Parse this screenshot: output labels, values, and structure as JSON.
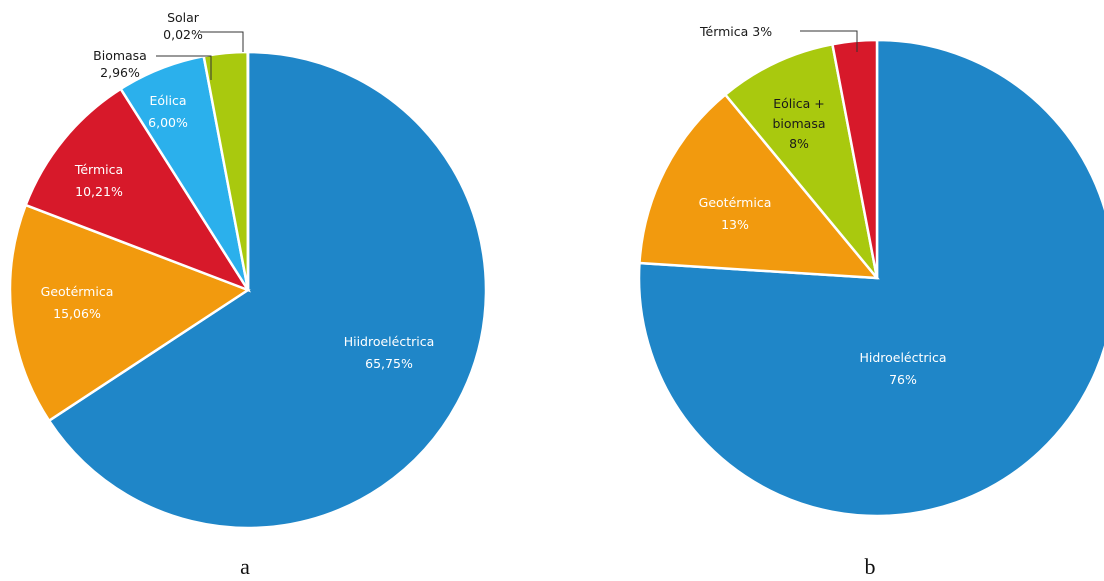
{
  "chart_data": [
    {
      "type": "pie",
      "panel_label": "a",
      "decimal_separator": ",",
      "unit": "%",
      "slices": [
        {
          "name": "Hiidroeléctrica",
          "value": 65.75,
          "value_text": "65,75%",
          "color": "#1F86C8",
          "text_color": "#ffffff"
        },
        {
          "name": "Geotérmica",
          "value": 15.06,
          "value_text": "15,06%",
          "color": "#F29A0E",
          "text_color": "#ffffff"
        },
        {
          "name": "Térmica",
          "value": 10.21,
          "value_text": "10,21%",
          "color": "#D7192A",
          "text_color": "#ffffff"
        },
        {
          "name": "Eólica",
          "value": 6.0,
          "value_text": "6,00%",
          "color": "#2BB0EC",
          "text_color": "#ffffff"
        },
        {
          "name": "Biomasa",
          "value": 2.96,
          "value_text": "2,96%",
          "color": "#A9C90E",
          "text_color": "#1a1a1a"
        },
        {
          "name": "Solar",
          "value": 0.02,
          "value_text": "0,02%",
          "color": "#F2E22A",
          "text_color": "#1a1a1a"
        }
      ]
    },
    {
      "type": "pie",
      "panel_label": "b",
      "unit": "%",
      "slices": [
        {
          "name": "Hidroeléctrica",
          "value": 76,
          "value_text": "76%",
          "color": "#1F86C8",
          "text_color": "#ffffff"
        },
        {
          "name": "Geotérmica",
          "value": 13,
          "value_text": "13%",
          "color": "#F29A0E",
          "text_color": "#ffffff"
        },
        {
          "name": "Eólica +\nbiomasa",
          "name_lines": [
            "Eólica +",
            "biomasa"
          ],
          "value": 8,
          "value_text": "8%",
          "color": "#A9C90E",
          "text_color": "#1a1a1a"
        },
        {
          "name": "Térmica",
          "value": 3,
          "value_text": "Térmica 3%",
          "color": "#D7192A",
          "text_color": "#1a1a1a"
        }
      ]
    }
  ]
}
